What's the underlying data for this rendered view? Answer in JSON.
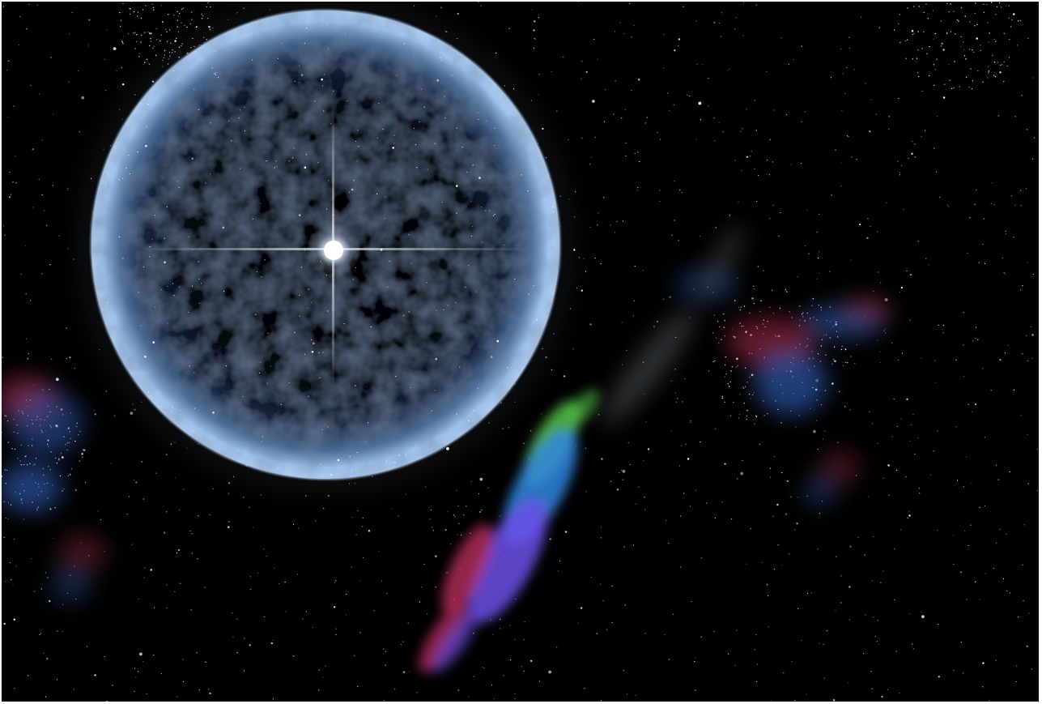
{
  "scene": {
    "subject": "space-illustration",
    "elements": [
      "starfield",
      "shell-ring",
      "central-star",
      "nebula-streak",
      "nebula-cloud-right",
      "nebula-cloud-left"
    ]
  },
  "colors": {
    "background": "#000000",
    "frame": "#ffffff",
    "ring": "#9fc4ef",
    "ring_dark": "#3e5a82",
    "star": "#ffffff",
    "nebula_green": "#56c24a",
    "nebula_blue": "#2f86e0",
    "nebula_violet": "#6b4fe6",
    "nebula_red": "#c03060",
    "nebula_grey": "#8a8f98",
    "cloud_blue": "#3a6fd8",
    "cloud_red": "#b0304a"
  }
}
